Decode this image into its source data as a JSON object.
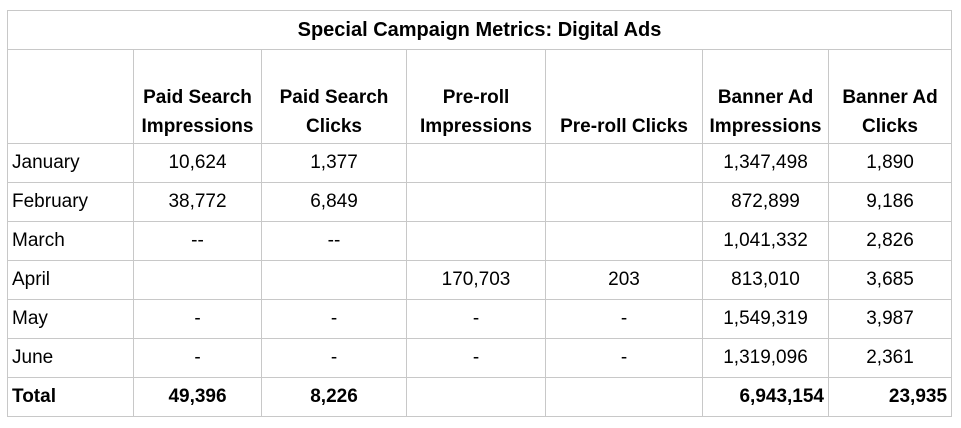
{
  "title": "Special Campaign Metrics: Digital Ads",
  "headers": [
    "",
    "Paid Search Impressions",
    "Paid Search Clicks",
    "Pre-roll Impressions",
    "Pre-roll Clicks",
    "Banner Ad Impressions",
    "Banner Ad Clicks"
  ],
  "rows": [
    {
      "month": "January",
      "cells": [
        "10,624",
        "1,377",
        "",
        "",
        "1,347,498",
        "1,890"
      ]
    },
    {
      "month": "February",
      "cells": [
        "38,772",
        "6,849",
        "",
        "",
        "872,899",
        "9,186"
      ]
    },
    {
      "month": "March",
      "cells": [
        "--",
        "--",
        "",
        "",
        "1,041,332",
        "2,826"
      ]
    },
    {
      "month": "April",
      "cells": [
        "",
        "",
        "170,703",
        "203",
        "813,010",
        "3,685"
      ]
    },
    {
      "month": "May",
      "cells": [
        "-",
        "-",
        "-",
        "-",
        "1,549,319",
        "3,987"
      ]
    },
    {
      "month": "June",
      "cells": [
        "-",
        "-",
        "-",
        "-",
        "1,319,096",
        "2,361"
      ]
    }
  ],
  "total": {
    "label": "Total",
    "cells": [
      "49,396",
      "8,226",
      "",
      "",
      "6,943,154",
      "23,935"
    ]
  }
}
